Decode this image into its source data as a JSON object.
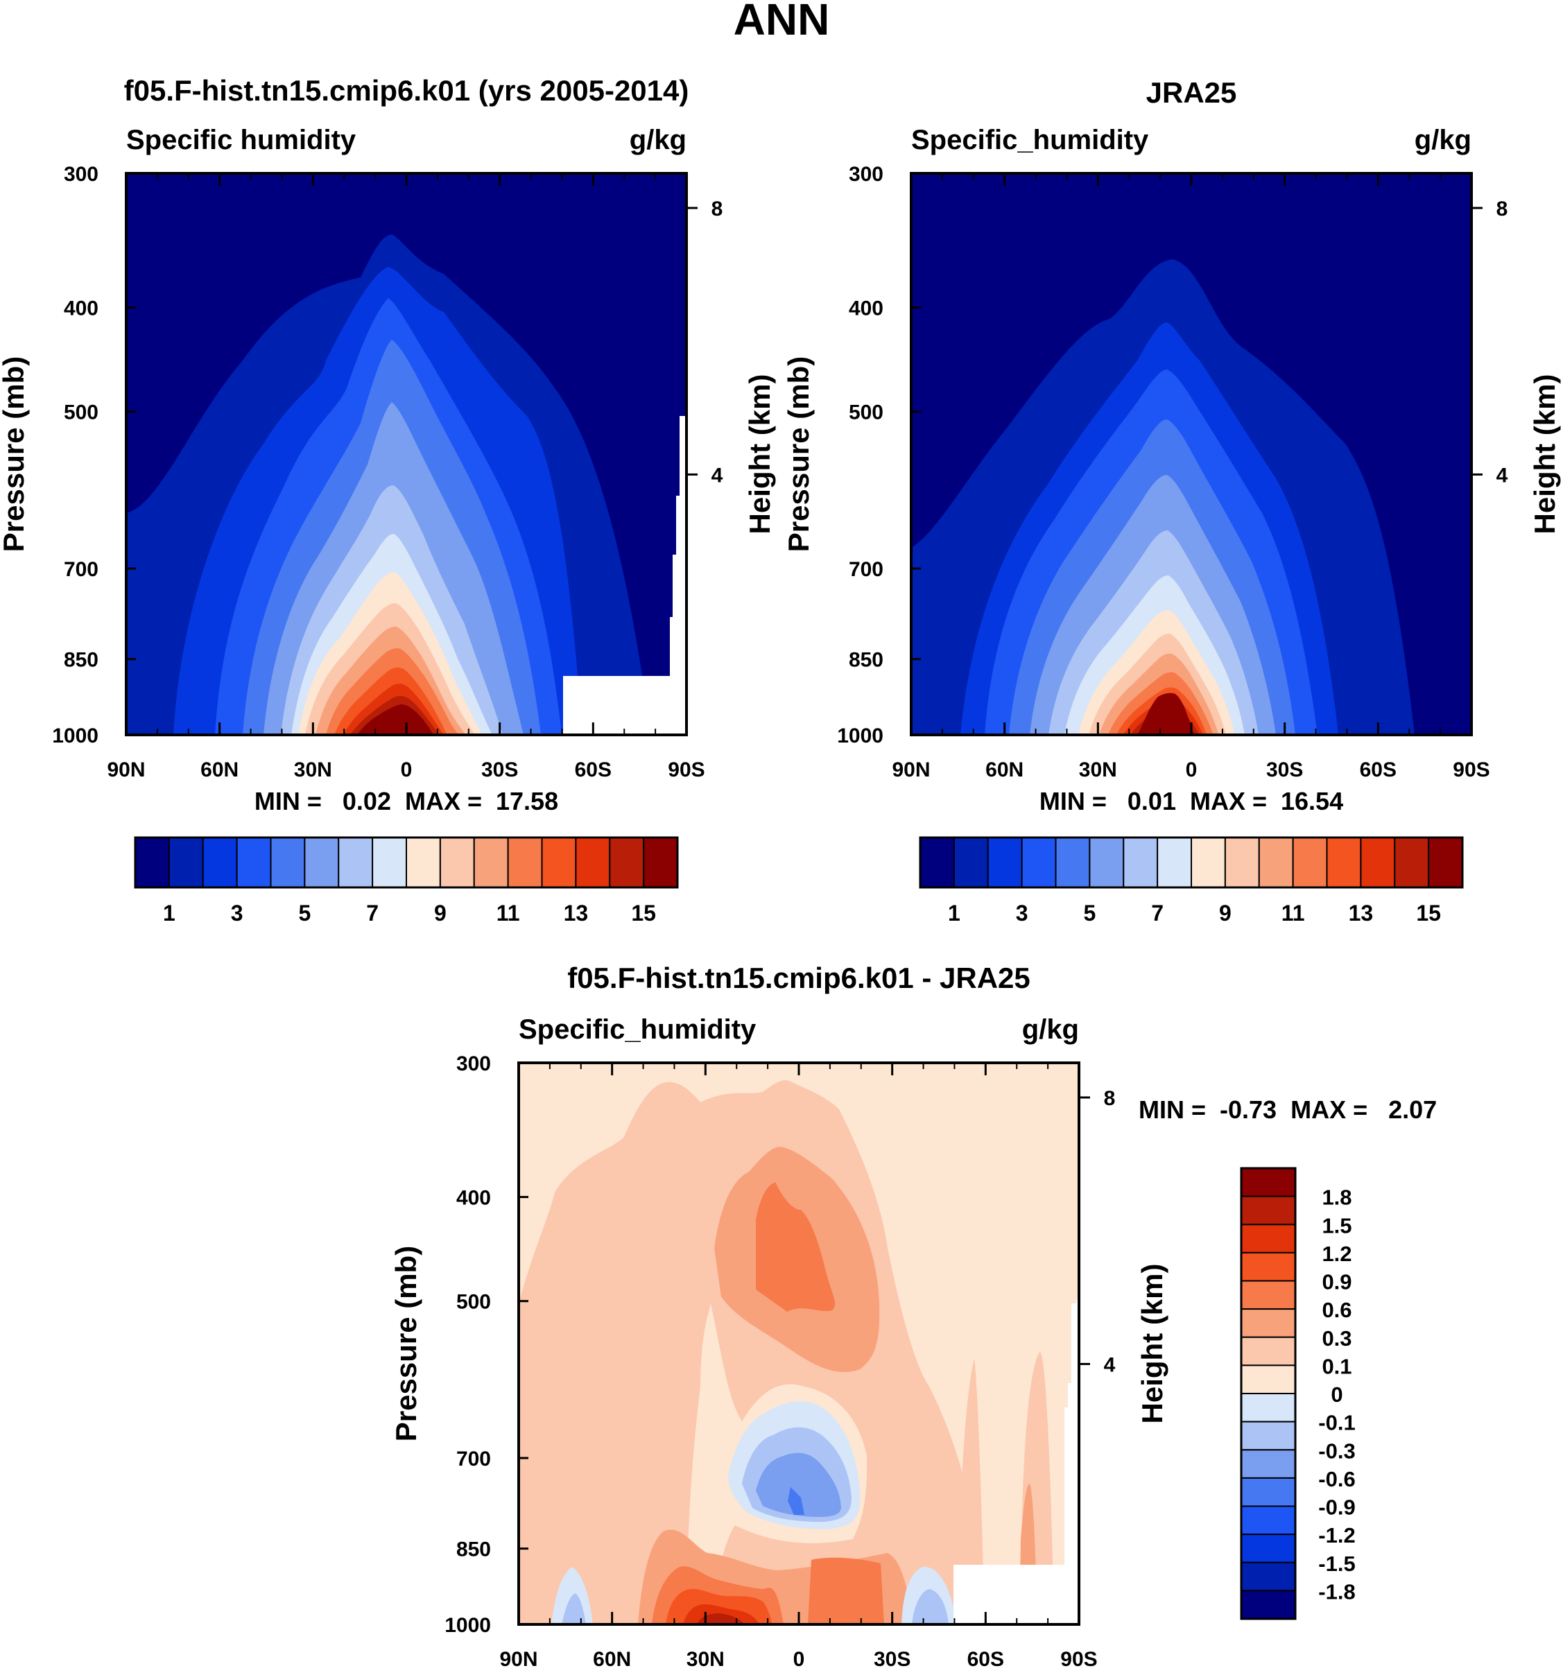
{
  "figure_title": "ANN",
  "panels": [
    {
      "title": "f05.F-hist.tn15.cmip6.k01 (yrs 2005-2014)",
      "left_label": "Specific humidity",
      "right_label": "g/kg",
      "stats": "MIN =   0.02  MAX =  17.58"
    },
    {
      "title": "JRA25",
      "left_label": "Specific_humidity",
      "right_label": "g/kg",
      "stats": "MIN =   0.01  MAX =  16.54"
    },
    {
      "title": "f05.F-hist.tn15.cmip6.k01 - JRA25",
      "left_label": "Specific_humidity",
      "right_label": "g/kg",
      "stats": "MIN =  -0.73  MAX =   2.07"
    }
  ],
  "axes": {
    "ylabel": "Pressure (mb)",
    "ylabel_right": "Height (km)",
    "pressure_ticks": [
      "300",
      "400",
      "500",
      "700",
      "850",
      "1000"
    ],
    "height_ticks": [
      "8",
      "4"
    ],
    "lat_ticks": [
      "90N",
      "60N",
      "30N",
      "0",
      "30S",
      "60S",
      "90S"
    ]
  },
  "colorbar_main": {
    "labels": [
      "1",
      "3",
      "5",
      "7",
      "9",
      "11",
      "13",
      "15"
    ],
    "colors": [
      "#00007f",
      "#0020b0",
      "#0537e0",
      "#1e55f5",
      "#4678f2",
      "#7a9ef0",
      "#acc3f5",
      "#d8e6fa",
      "#fde6d2",
      "#fbc7ad",
      "#f8a27c",
      "#f67a4a",
      "#f4541f",
      "#e3330a",
      "#b81e08",
      "#8b0000"
    ]
  },
  "colorbar_diff": {
    "labels": [
      "1.8",
      "1.5",
      "1.2",
      "0.9",
      "0.6",
      "0.3",
      "0.1",
      "0",
      "-0.1",
      "-0.3",
      "-0.6",
      "-0.9",
      "-1.2",
      "-1.5",
      "-1.8"
    ],
    "colors_top_to_bottom": [
      "#8b0000",
      "#b81e08",
      "#e3330a",
      "#f4541f",
      "#f67a4a",
      "#f8a27c",
      "#fbc7ad",
      "#fde6d2",
      "#d8e6fa",
      "#acc3f5",
      "#7a9ef0",
      "#4678f2",
      "#1e55f5",
      "#0537e0",
      "#0020b0",
      "#00007f"
    ]
  },
  "chart_data": [
    {
      "type": "heatmap",
      "title": "f05.F-hist.tn15.cmip6.k01 (yrs 2005-2014)",
      "variable": "Specific humidity",
      "units": "g/kg",
      "xlabel": "",
      "ylabel": "Pressure (mb)",
      "x_ticks": [
        "90N",
        "60N",
        "30N",
        "0",
        "30S",
        "60S",
        "90S"
      ],
      "y_ticks": [
        300,
        400,
        500,
        700,
        850,
        1000
      ],
      "ylim": [
        1000,
        300
      ],
      "min": 0.02,
      "max": 17.58,
      "contour_levels": [
        1,
        2,
        3,
        4,
        5,
        6,
        7,
        8,
        9,
        10,
        11,
        12,
        13,
        14,
        15
      ],
      "peak": {
        "lat": 0,
        "pressure": 1000,
        "value": 17.58
      },
      "missing_region": "near-surface polar south (60S-90S below ~850 mb)"
    },
    {
      "type": "heatmap",
      "title": "JRA25",
      "variable": "Specific_humidity",
      "units": "g/kg",
      "xlabel": "",
      "ylabel": "Pressure (mb)",
      "x_ticks": [
        "90N",
        "60N",
        "30N",
        "0",
        "30S",
        "60S",
        "90S"
      ],
      "y_ticks": [
        300,
        400,
        500,
        700,
        850,
        1000
      ],
      "ylim": [
        1000,
        300
      ],
      "min": 0.01,
      "max": 16.54,
      "contour_levels": [
        1,
        2,
        3,
        4,
        5,
        6,
        7,
        8,
        9,
        10,
        11,
        12,
        13,
        14,
        15
      ],
      "peak": {
        "lat": 0,
        "pressure": 1000,
        "value": 16.54
      }
    },
    {
      "type": "heatmap",
      "title": "f05.F-hist.tn15.cmip6.k01 - JRA25",
      "variable": "Specific_humidity",
      "units": "g/kg",
      "xlabel": "",
      "ylabel": "Pressure (mb)",
      "x_ticks": [
        "90N",
        "60N",
        "30N",
        "0",
        "30S",
        "60S",
        "90S"
      ],
      "y_ticks": [
        300,
        400,
        500,
        700,
        850,
        1000
      ],
      "ylim": [
        1000,
        300
      ],
      "min": -0.73,
      "max": 2.07,
      "contour_levels": [
        -1.8,
        -1.5,
        -1.2,
        -0.9,
        -0.6,
        -0.3,
        -0.1,
        0,
        0.1,
        0.3,
        0.6,
        0.9,
        1.2,
        1.5,
        1.8
      ],
      "features": [
        {
          "desc": "positive maximum near 25N at surface",
          "lat": 25,
          "pressure": 1000,
          "value": 2.07
        },
        {
          "desc": "positive core ~0.6-0.9 near equator",
          "lat": 0,
          "pressure": 550
        },
        {
          "desc": "negative core near equator",
          "lat": 0,
          "pressure": 850,
          "value": -0.73
        }
      ]
    }
  ]
}
